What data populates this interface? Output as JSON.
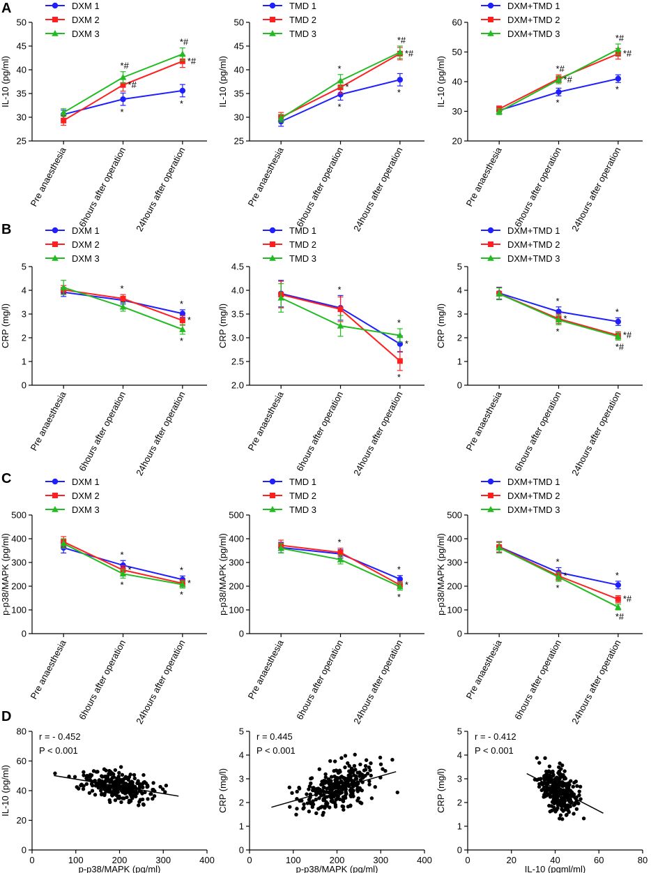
{
  "figure": {
    "panel_letters": [
      "A",
      "B",
      "C",
      "D"
    ]
  },
  "categories": [
    "Pre anaesthesia",
    "6hours after operation",
    "24hours after operation"
  ],
  "colors": {
    "s1": "#1f1fff",
    "s2": "#ff1f1f",
    "s3": "#22bb22",
    "black": "#000000"
  },
  "chart_data": [
    {
      "id": "A1",
      "panel": "A",
      "type": "line",
      "ylabel": "IL-10 (pg/ml)",
      "ylim": [
        25,
        50
      ],
      "yticks": [
        25,
        30,
        35,
        40,
        45,
        50
      ],
      "ytick_labels": [
        "25",
        "30",
        "35",
        "40",
        "45",
        "50"
      ],
      "series": [
        {
          "name": "DXM 1",
          "marker": "circle",
          "values": [
            30.6,
            33.8,
            35.6
          ],
          "err": [
            0.9,
            1.3,
            1.3
          ],
          "marks": [
            "",
            "*",
            "*"
          ]
        },
        {
          "name": "DXM 2",
          "marker": "square",
          "values": [
            29.3,
            36.8,
            41.8
          ],
          "err": [
            1.0,
            1.3,
            1.3
          ],
          "marks": [
            "",
            "*#",
            "*#"
          ]
        },
        {
          "name": "DXM 3",
          "marker": "triangle",
          "values": [
            31.0,
            38.4,
            43.3
          ],
          "err": [
            0.8,
            1.2,
            1.3
          ],
          "marks": [
            "",
            "*#",
            "*#"
          ]
        }
      ]
    },
    {
      "id": "A2",
      "panel": "A",
      "type": "line",
      "ylabel": "IL-10 (pg/ml)",
      "ylim": [
        25,
        50
      ],
      "yticks": [
        25,
        30,
        35,
        40,
        45,
        50
      ],
      "ytick_labels": [
        "25",
        "30",
        "35",
        "40",
        "45",
        "50"
      ],
      "series": [
        {
          "name": "TMD 1",
          "marker": "circle",
          "values": [
            29.1,
            34.8,
            37.9
          ],
          "err": [
            1.0,
            1.2,
            1.3
          ],
          "marks": [
            "",
            "*",
            "*"
          ]
        },
        {
          "name": "TMD 2",
          "marker": "square",
          "values": [
            30.0,
            36.3,
            43.4
          ],
          "err": [
            1.0,
            1.3,
            1.3
          ],
          "marks": [
            "",
            "*",
            "*#"
          ]
        },
        {
          "name": "TMD 3",
          "marker": "triangle",
          "values": [
            29.8,
            37.7,
            43.7
          ],
          "err": [
            0.8,
            1.3,
            1.3
          ],
          "marks": [
            "",
            "*",
            "*#"
          ]
        }
      ]
    },
    {
      "id": "A3",
      "panel": "A",
      "type": "line",
      "ylabel": "IL-10 (pg/ml)",
      "ylim": [
        20,
        60
      ],
      "yticks": [
        20,
        30,
        40,
        50,
        60
      ],
      "ytick_labels": [
        "20",
        "30",
        "40",
        "50",
        "60"
      ],
      "series": [
        {
          "name": "DXM+TMD 1",
          "marker": "circle",
          "values": [
            30.3,
            36.5,
            41.0
          ],
          "err": [
            1.0,
            1.3,
            1.3
          ],
          "marks": [
            "",
            "*",
            "*"
          ]
        },
        {
          "name": "DXM+TMD 2",
          "marker": "square",
          "values": [
            30.8,
            41.0,
            49.4
          ],
          "err": [
            1.0,
            1.3,
            1.8
          ],
          "marks": [
            "",
            "*#",
            "*#"
          ]
        },
        {
          "name": "DXM+TMD 3",
          "marker": "triangle",
          "values": [
            29.9,
            40.6,
            50.9
          ],
          "err": [
            1.0,
            1.3,
            1.8
          ],
          "marks": [
            "",
            "*#",
            "*#"
          ]
        }
      ]
    },
    {
      "id": "B1",
      "panel": "B",
      "type": "line",
      "ylabel": "CRP (mg/l)",
      "ylim": [
        0,
        5
      ],
      "yticks": [
        0,
        1,
        2,
        3,
        4,
        5
      ],
      "ytick_labels": [
        "0",
        "1",
        "2",
        "3",
        "4",
        "5"
      ],
      "series": [
        {
          "name": "DXM 1",
          "marker": "circle",
          "values": [
            3.92,
            3.58,
            3.02
          ],
          "err": [
            0.18,
            0.16,
            0.16
          ],
          "marks": [
            "",
            "",
            "*"
          ]
        },
        {
          "name": "DXM 2",
          "marker": "square",
          "values": [
            4.02,
            3.65,
            2.73
          ],
          "err": [
            0.18,
            0.17,
            0.2
          ],
          "marks": [
            "",
            "",
            "*"
          ]
        },
        {
          "name": "DXM 3",
          "marker": "triangle",
          "values": [
            4.12,
            3.3,
            2.35
          ],
          "err": [
            0.3,
            0.18,
            0.2
          ],
          "marks": [
            "",
            "*",
            "*"
          ]
        }
      ]
    },
    {
      "id": "B2",
      "panel": "B",
      "type": "line",
      "ylabel": "CRP (mg/l)",
      "ylim": [
        2,
        4.5
      ],
      "yticks": [
        2,
        2.5,
        3,
        3.5,
        4,
        4.5
      ],
      "ytick_labels": [
        "2.0",
        "2.5",
        "3.0",
        "3.5",
        "4.0",
        "4.5"
      ],
      "series": [
        {
          "name": "TMD 1",
          "marker": "circle",
          "values": [
            3.93,
            3.63,
            2.87
          ],
          "err": [
            0.28,
            0.26,
            0.17
          ],
          "marks": [
            "",
            "",
            "*"
          ]
        },
        {
          "name": "TMD 2",
          "marker": "square",
          "values": [
            3.91,
            3.6,
            2.51
          ],
          "err": [
            0.28,
            0.26,
            0.2
          ],
          "marks": [
            "",
            "",
            "*"
          ]
        },
        {
          "name": "TMD 3",
          "marker": "triangle",
          "values": [
            3.84,
            3.25,
            3.05
          ],
          "err": [
            0.3,
            0.22,
            0.14
          ],
          "marks": [
            "",
            "*",
            "*"
          ]
        }
      ]
    },
    {
      "id": "B3",
      "panel": "B",
      "type": "line",
      "ylabel": "CRP (mg/l)",
      "ylim": [
        0,
        5
      ],
      "yticks": [
        0,
        1,
        2,
        3,
        4,
        5
      ],
      "ytick_labels": [
        "0",
        "1",
        "2",
        "3",
        "4",
        "5"
      ],
      "series": [
        {
          "name": "DXM+TMD 1",
          "marker": "circle",
          "values": [
            3.88,
            3.1,
            2.68
          ],
          "err": [
            0.25,
            0.2,
            0.16
          ],
          "marks": [
            "",
            "*",
            "*"
          ]
        },
        {
          "name": "DXM+TMD 2",
          "marker": "square",
          "values": [
            3.86,
            2.8,
            2.1
          ],
          "err": [
            0.25,
            0.2,
            0.15
          ],
          "marks": [
            "",
            "*",
            "*#"
          ]
        },
        {
          "name": "DXM+TMD 3",
          "marker": "triangle",
          "values": [
            3.85,
            2.75,
            2.05
          ],
          "err": [
            0.25,
            0.2,
            0.15
          ],
          "marks": [
            "",
            "*",
            "*#"
          ]
        }
      ]
    },
    {
      "id": "C1",
      "panel": "C",
      "type": "line",
      "ylabel": "p-p38/MAPK (pg/ml)",
      "ylim": [
        0,
        500
      ],
      "yticks": [
        0,
        100,
        200,
        300,
        400,
        500
      ],
      "ytick_labels": [
        "0",
        "100",
        "200",
        "300",
        "400",
        "500"
      ],
      "series": [
        {
          "name": "DXM 1",
          "marker": "circle",
          "values": [
            362,
            288,
            228
          ],
          "err": [
            22,
            20,
            15
          ],
          "marks": [
            "",
            "*",
            "*"
          ]
        },
        {
          "name": "DXM 2",
          "marker": "square",
          "values": [
            387,
            268,
            212
          ],
          "err": [
            22,
            18,
            15
          ],
          "marks": [
            "",
            "*",
            "*"
          ]
        },
        {
          "name": "DXM 3",
          "marker": "triangle",
          "values": [
            380,
            252,
            207
          ],
          "err": [
            20,
            18,
            15
          ],
          "marks": [
            "",
            "*",
            "*"
          ]
        }
      ]
    },
    {
      "id": "C2",
      "panel": "C",
      "type": "line",
      "ylabel": "p-p38/MAPK (pg/ml)",
      "ylim": [
        0,
        500
      ],
      "yticks": [
        0,
        100,
        200,
        300,
        400,
        500
      ],
      "ytick_labels": [
        "0",
        "100",
        "200",
        "300",
        "400",
        "500"
      ],
      "series": [
        {
          "name": "TMD 1",
          "marker": "circle",
          "values": [
            363,
            336,
            230
          ],
          "err": [
            22,
            18,
            15
          ],
          "marks": [
            "",
            "",
            "*"
          ]
        },
        {
          "name": "TMD 2",
          "marker": "square",
          "values": [
            372,
            342,
            205
          ],
          "err": [
            22,
            18,
            15
          ],
          "marks": [
            "",
            "",
            "*"
          ]
        },
        {
          "name": "TMD 3",
          "marker": "triangle",
          "values": [
            360,
            312,
            198
          ],
          "err": [
            20,
            18,
            15
          ],
          "marks": [
            "",
            "*",
            "*"
          ]
        }
      ]
    },
    {
      "id": "C3",
      "panel": "C",
      "type": "line",
      "ylabel": "p-p38/MAPK (pg/ml)",
      "ylim": [
        0,
        500
      ],
      "yticks": [
        0,
        100,
        200,
        300,
        400,
        500
      ],
      "ytick_labels": [
        "0",
        "100",
        "200",
        "300",
        "400",
        "500"
      ],
      "series": [
        {
          "name": "DXM+TMD 1",
          "marker": "circle",
          "values": [
            366,
            258,
            205
          ],
          "err": [
            22,
            20,
            16
          ],
          "marks": [
            "",
            "*",
            "*"
          ]
        },
        {
          "name": "DXM+TMD 2",
          "marker": "square",
          "values": [
            365,
            243,
            145
          ],
          "err": [
            22,
            18,
            15
          ],
          "marks": [
            "",
            "*",
            "*#"
          ]
        },
        {
          "name": "DXM+TMD 3",
          "marker": "triangle",
          "values": [
            362,
            238,
            112
          ],
          "err": [
            22,
            18,
            12
          ],
          "marks": [
            "",
            "*",
            "*#"
          ]
        }
      ]
    },
    {
      "id": "D1",
      "panel": "D",
      "type": "scatter",
      "xlabel": "p-p38/MAPK  (pg/ml)",
      "ylabel": "IL-10 (pg/ml)",
      "xlim": [
        0,
        400
      ],
      "ylim": [
        0,
        80
      ],
      "xticks": [
        0,
        100,
        200,
        300,
        400
      ],
      "yticks": [
        0,
        20,
        40,
        60,
        80
      ],
      "xtick_labels": [
        "0",
        "100",
        "200",
        "300",
        "400"
      ],
      "ytick_labels": [
        "0",
        "20",
        "40",
        "60",
        "80"
      ],
      "r_text": "r = - 0.452",
      "p_text": "P < 0.001",
      "fit": {
        "x1": 50,
        "y1": 50.2,
        "x2": 335,
        "y2": 36.3
      },
      "cloud": {
        "n": 300,
        "seed": 11,
        "x_center": 200,
        "x_range": [
          45,
          340
        ],
        "x_sd": 65,
        "intercept": 52.6,
        "slope": -0.0488,
        "y_sd": 6.5,
        "y_range": [
          26,
          62
        ]
      }
    },
    {
      "id": "D2",
      "panel": "D",
      "type": "scatter",
      "xlabel": "p-p38/MAPK  (pg/ml)",
      "ylabel": "CRP (mg/l)",
      "xlim": [
        0,
        400
      ],
      "ylim": [
        0,
        5
      ],
      "xticks": [
        0,
        100,
        200,
        300,
        400
      ],
      "yticks": [
        0,
        1,
        2,
        3,
        4,
        5
      ],
      "xtick_labels": [
        "0",
        "100",
        "200",
        "300",
        "400"
      ],
      "ytick_labels": [
        "0",
        "1",
        "2",
        "3",
        "4",
        "5"
      ],
      "r_text": "r = 0.445",
      "p_text": "P < 0.001",
      "fit": {
        "x1": 50,
        "y1": 1.8,
        "x2": 335,
        "y2": 3.3
      },
      "cloud": {
        "n": 300,
        "seed": 23,
        "x_center": 200,
        "x_range": [
          45,
          340
        ],
        "x_sd": 65,
        "intercept": 1.54,
        "slope": 0.00526,
        "y_sd": 0.6,
        "y_range": [
          0.65,
          4.2
        ]
      }
    },
    {
      "id": "D3",
      "panel": "D",
      "type": "scatter",
      "xlabel": "IL-10 (pgml/ml)",
      "ylabel": "CRP (mg/l)",
      "xlim": [
        0,
        80
      ],
      "ylim": [
        0,
        5
      ],
      "xticks": [
        0,
        20,
        40,
        60,
        80
      ],
      "yticks": [
        0,
        1,
        2,
        3,
        4,
        5
      ],
      "xtick_labels": [
        "0",
        "20",
        "40",
        "60",
        "80"
      ],
      "ytick_labels": [
        "0",
        "1",
        "2",
        "3",
        "4",
        "5"
      ],
      "r_text": "r = - 0.412",
      "p_text": "P < 0.001",
      "fit": {
        "x1": 27,
        "y1": 3.22,
        "x2": 62,
        "y2": 1.55
      },
      "cloud": {
        "n": 300,
        "seed": 37,
        "x_center": 42,
        "x_range": [
          25,
          62
        ],
        "x_sd": 7,
        "intercept": 4.51,
        "slope": -0.0477,
        "y_sd": 0.6,
        "y_range": [
          0.65,
          4.1
        ]
      }
    }
  ]
}
